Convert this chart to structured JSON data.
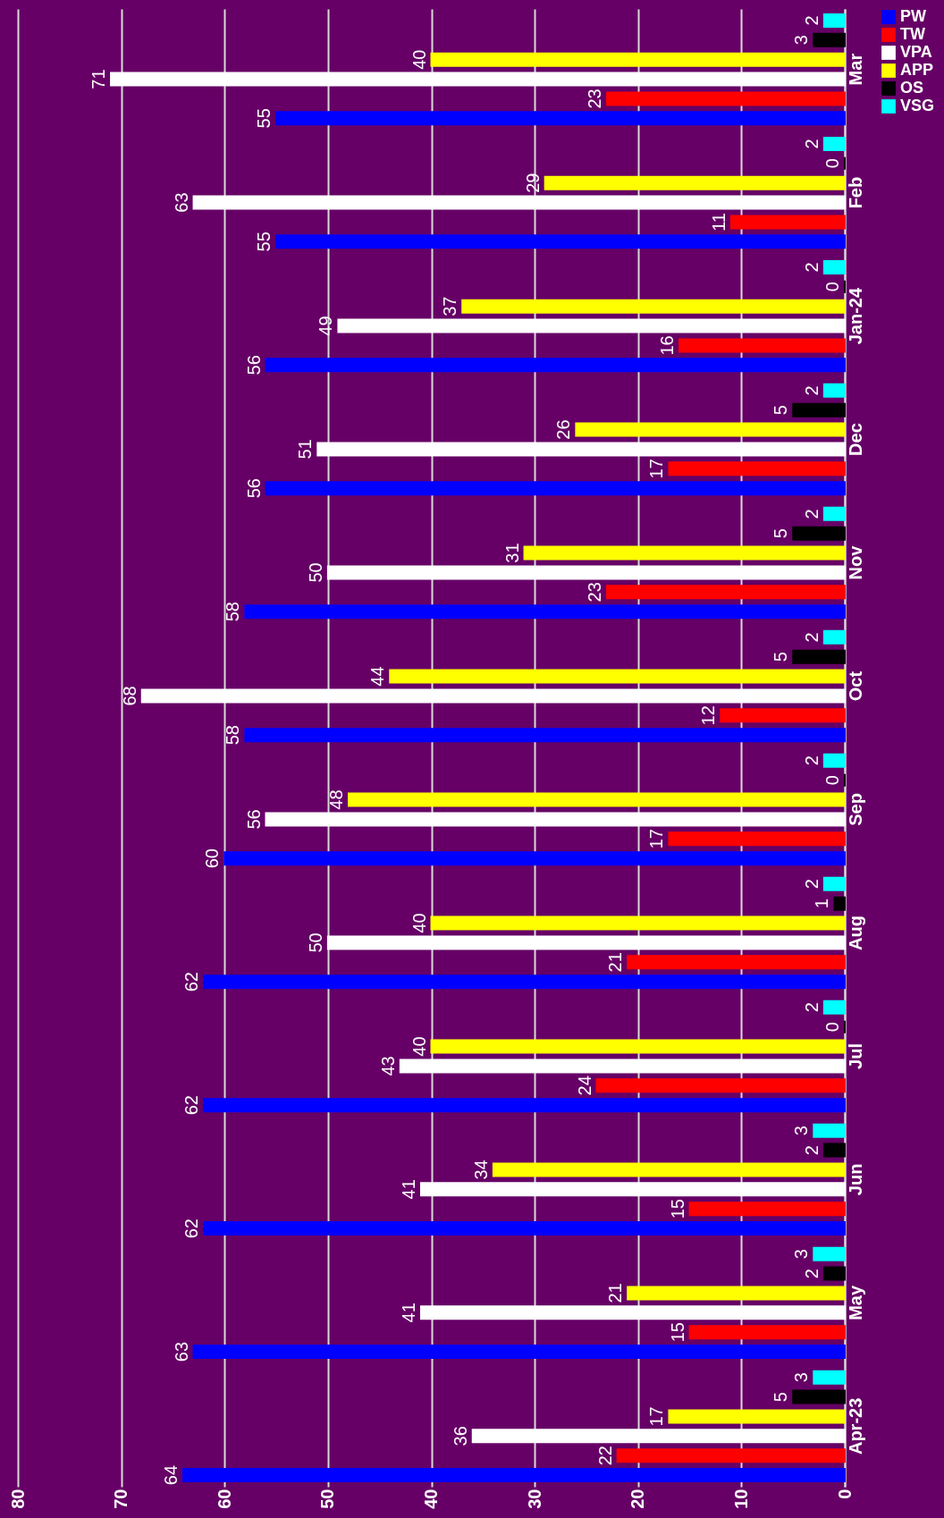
{
  "chart_data": {
    "type": "bar",
    "orientation": "horizontal",
    "categories": [
      "Mar",
      "Feb",
      "Jan-24",
      "Dec",
      "Nov",
      "Oct",
      "Sep",
      "Aug",
      "Jul",
      "Jun",
      "May",
      "Apr-23"
    ],
    "series": [
      {
        "name": "PW",
        "color": "#0000ff",
        "values": [
          55,
          55,
          56,
          56,
          58,
          58,
          60,
          62,
          62,
          62,
          63,
          64
        ]
      },
      {
        "name": "TW",
        "color": "#ff0000",
        "values": [
          23,
          11,
          16,
          17,
          23,
          12,
          17,
          21,
          24,
          15,
          15,
          22
        ]
      },
      {
        "name": "VPA",
        "color": "#ffffff",
        "values": [
          71,
          63,
          49,
          51,
          50,
          68,
          56,
          50,
          43,
          41,
          41,
          36
        ]
      },
      {
        "name": "APP",
        "color": "#ffff00",
        "values": [
          40,
          29,
          37,
          26,
          31,
          44,
          48,
          40,
          40,
          34,
          21,
          17
        ]
      },
      {
        "name": "OS",
        "color": "#000000",
        "values": [
          3,
          0,
          0,
          5,
          5,
          5,
          0,
          1,
          0,
          2,
          2,
          5
        ]
      },
      {
        "name": "VSG",
        "color": "#00ffff",
        "values": [
          2,
          2,
          2,
          2,
          2,
          2,
          2,
          2,
          2,
          3,
          3,
          3
        ]
      }
    ],
    "xlim": [
      80,
      0
    ],
    "xticks": [
      0,
      10,
      20,
      30,
      40,
      50,
      60,
      70,
      80
    ],
    "grid": "x",
    "legend": "right",
    "data_labels": true
  }
}
